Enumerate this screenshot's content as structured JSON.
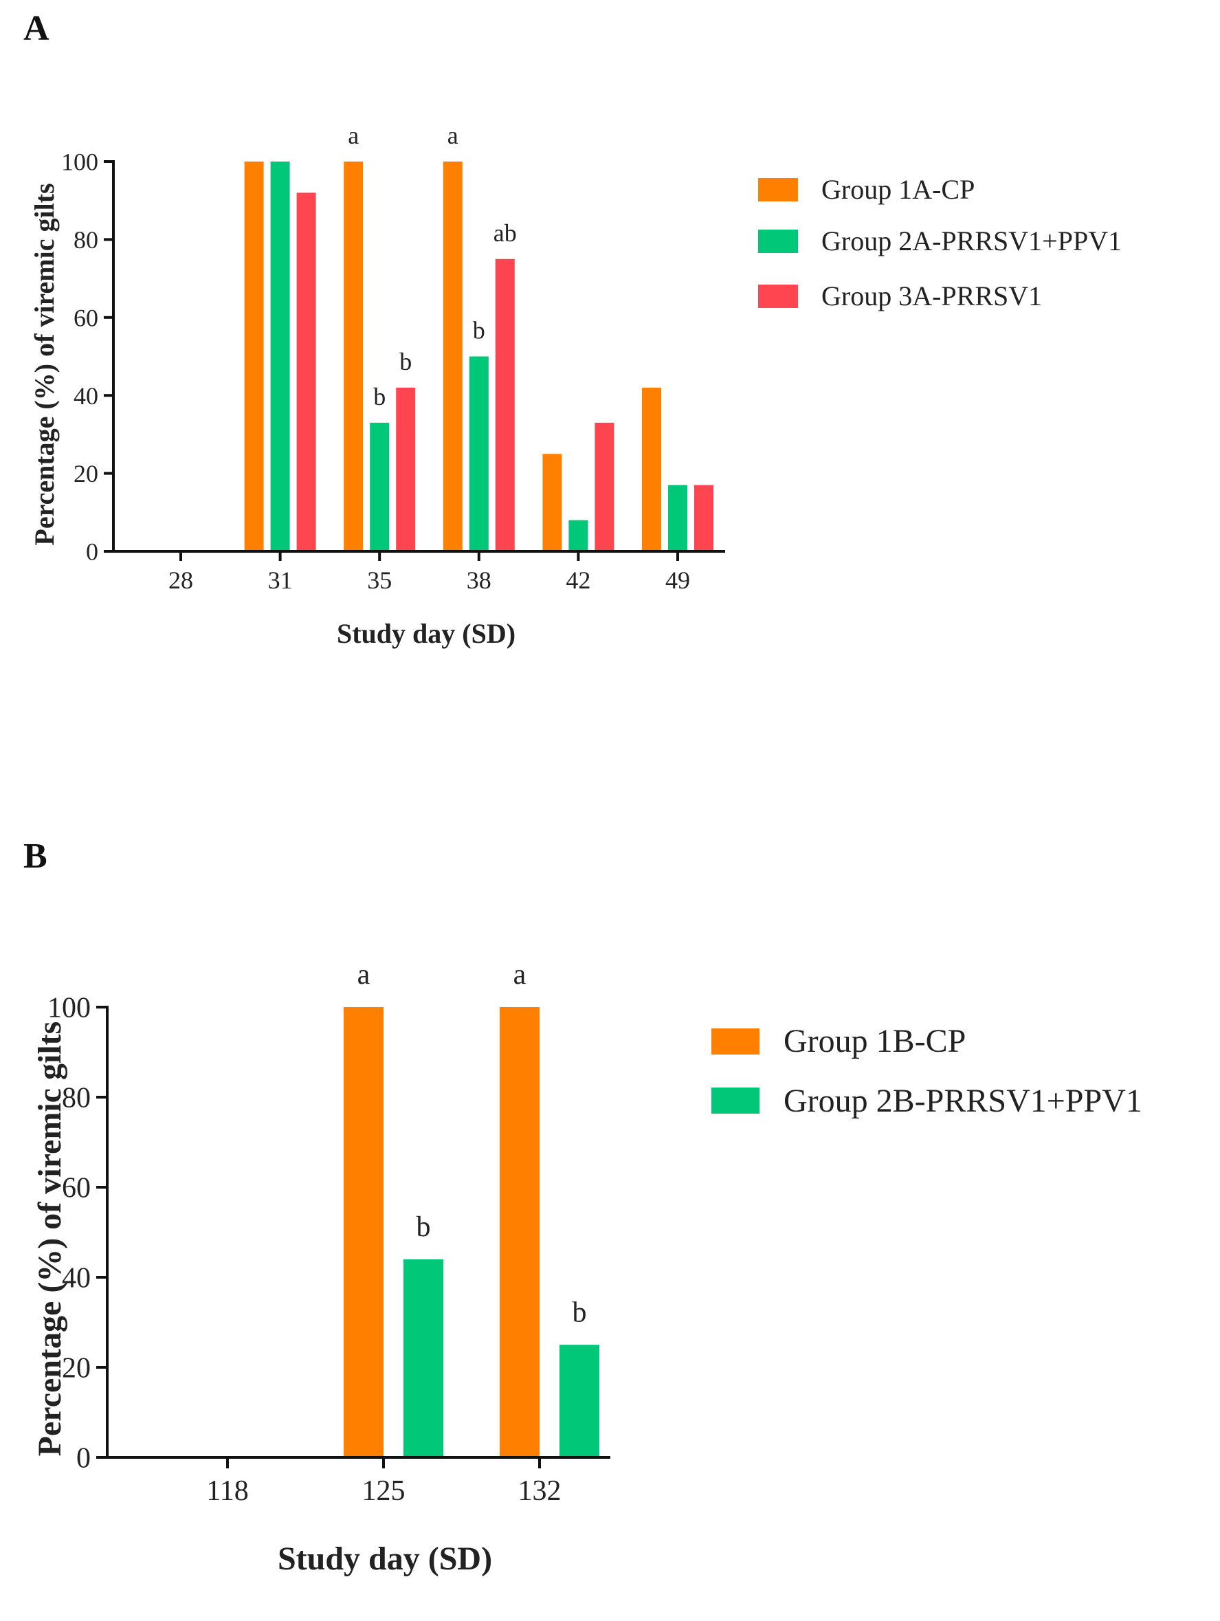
{
  "chart_data": [
    {
      "panel": "A",
      "type": "bar",
      "title": "",
      "xlabel": "Study day (SD)",
      "ylabel": "Percentage (%) of viremic gilts",
      "ylim": [
        0,
        100
      ],
      "yticks": [
        "0",
        "20",
        "40",
        "60",
        "80",
        "100"
      ],
      "categories": [
        "28",
        "31",
        "35",
        "38",
        "42",
        "49"
      ],
      "series": [
        {
          "name": "Group 1A-CP",
          "color": "#FF8000",
          "values": [
            0,
            100,
            100,
            100,
            25,
            42
          ]
        },
        {
          "name": "Group 2A-PRRSV1+PPV1",
          "color": "#00C878",
          "values": [
            0,
            100,
            33,
            50,
            8,
            17
          ]
        },
        {
          "name": "Group 3A-PRRSV1",
          "color": "#FF4650",
          "values": [
            0,
            92,
            42,
            75,
            33,
            17
          ]
        }
      ],
      "annotations": [
        {
          "category": 2,
          "series": 0,
          "text": "a"
        },
        {
          "category": 3,
          "series": 0,
          "text": "a"
        },
        {
          "category": 2,
          "series": 1,
          "text": "b"
        },
        {
          "category": 2,
          "series": 2,
          "text": "b"
        },
        {
          "category": 3,
          "series": 1,
          "text": "b"
        },
        {
          "category": 3,
          "series": 2,
          "text": "ab"
        }
      ],
      "legend_position": "right"
    },
    {
      "panel": "B",
      "type": "bar",
      "title": "",
      "xlabel": "Study day (SD)",
      "ylabel": "Percentage (%) of viremic gilts",
      "ylim": [
        0,
        100
      ],
      "yticks": [
        "0",
        "20",
        "40",
        "60",
        "80",
        "100"
      ],
      "categories": [
        "118",
        "125",
        "132"
      ],
      "series": [
        {
          "name": "Group 1B-CP",
          "color": "#FF8000",
          "values": [
            0,
            100,
            100
          ]
        },
        {
          "name": "Group 2B-PRRSV1+PPV1",
          "color": "#00C878",
          "values": [
            0,
            44,
            25
          ]
        }
      ],
      "annotations": [
        {
          "category": 1,
          "series": 0,
          "text": "a"
        },
        {
          "category": 2,
          "series": 0,
          "text": "a"
        },
        {
          "category": 1,
          "series": 1,
          "text": "b"
        },
        {
          "category": 2,
          "series": 1,
          "text": "b"
        }
      ],
      "legend_position": "right"
    }
  ]
}
